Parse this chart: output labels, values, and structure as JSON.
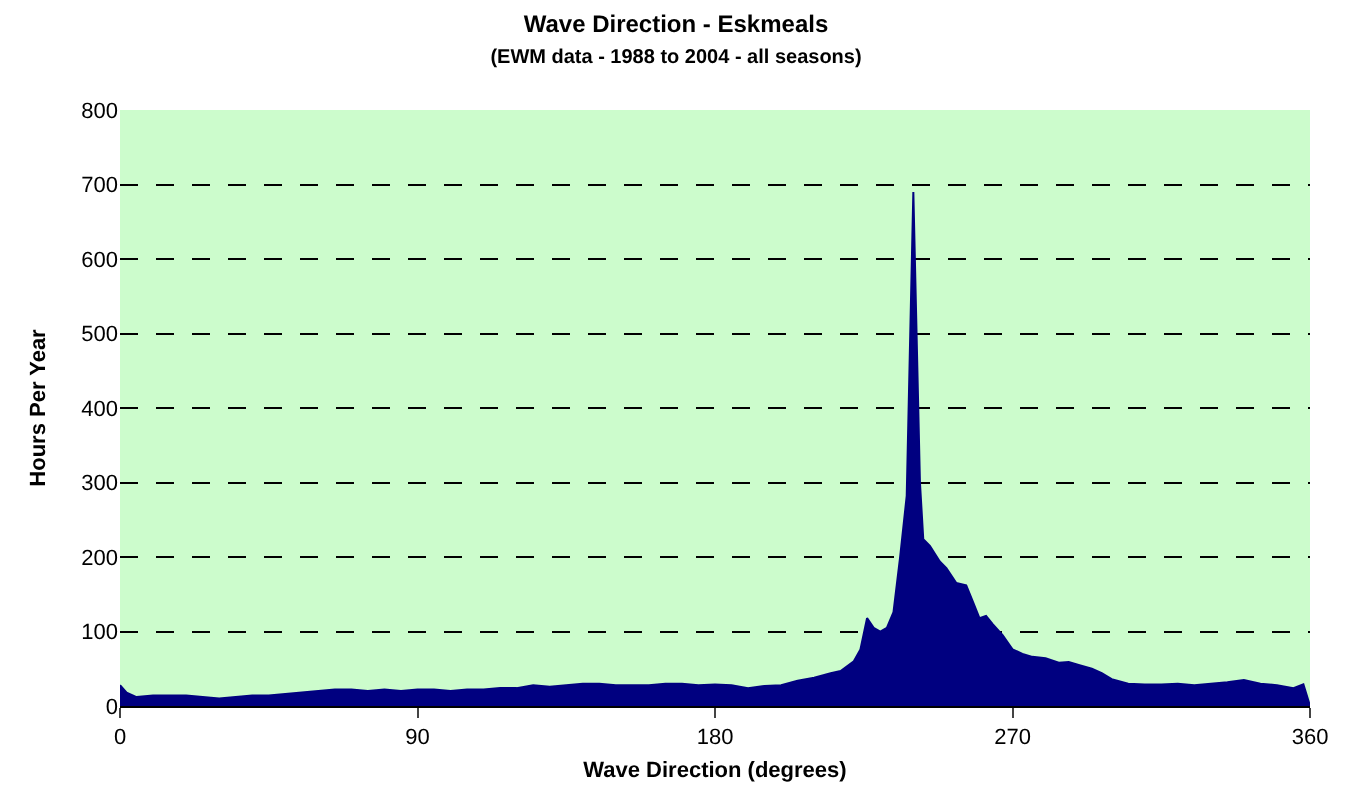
{
  "chart_data": {
    "type": "area",
    "title": "Wave Direction - Eskmeals",
    "subtitle": "(EWM data - 1988 to 2004 - all seasons)",
    "xlabel": "Wave Direction (degrees)",
    "ylabel": "Hours Per Year",
    "x": [
      0,
      2,
      5,
      10,
      15,
      20,
      25,
      30,
      35,
      40,
      45,
      50,
      55,
      60,
      65,
      70,
      75,
      80,
      85,
      90,
      95,
      100,
      105,
      110,
      115,
      120,
      125,
      130,
      135,
      140,
      145,
      150,
      155,
      160,
      165,
      170,
      175,
      180,
      185,
      190,
      195,
      200,
      205,
      210,
      215,
      218,
      222,
      224,
      226,
      228,
      230,
      232,
      234,
      236,
      238,
      240,
      242,
      243,
      245,
      248,
      250,
      253,
      256,
      258,
      260,
      262,
      264,
      267,
      270,
      273,
      276,
      280,
      284,
      287,
      290,
      294,
      297,
      300,
      305,
      310,
      315,
      320,
      325,
      330,
      335,
      340,
      345,
      350,
      355,
      358,
      360
    ],
    "series": [
      {
        "color": "#000080",
        "values": [
          28,
          18,
          12,
          14,
          14,
          14,
          12,
          10,
          12,
          14,
          14,
          16,
          18,
          20,
          22,
          22,
          20,
          22,
          20,
          22,
          22,
          20,
          22,
          22,
          24,
          24,
          28,
          26,
          28,
          30,
          30,
          28,
          28,
          28,
          30,
          30,
          28,
          29,
          28,
          24,
          27,
          28,
          34,
          38,
          44,
          47,
          60,
          76,
          118,
          105,
          100,
          105,
          126,
          200,
          282,
          690,
          300,
          224,
          215,
          194,
          185,
          165,
          162,
          140,
          118,
          121,
          110,
          95,
          76,
          70,
          66,
          64,
          58,
          59,
          55,
          50,
          44,
          36,
          30,
          29,
          29,
          30,
          28,
          30,
          32,
          35,
          30,
          28,
          24,
          29,
          0
        ]
      }
    ],
    "xlim": [
      0,
      360
    ],
    "xticks": [
      0,
      90,
      180,
      270,
      360
    ],
    "ylim": [
      0,
      800
    ],
    "yticks": [
      0,
      100,
      200,
      300,
      400,
      500,
      600,
      700,
      800
    ],
    "grid": "y",
    "line_style": "dashed"
  }
}
